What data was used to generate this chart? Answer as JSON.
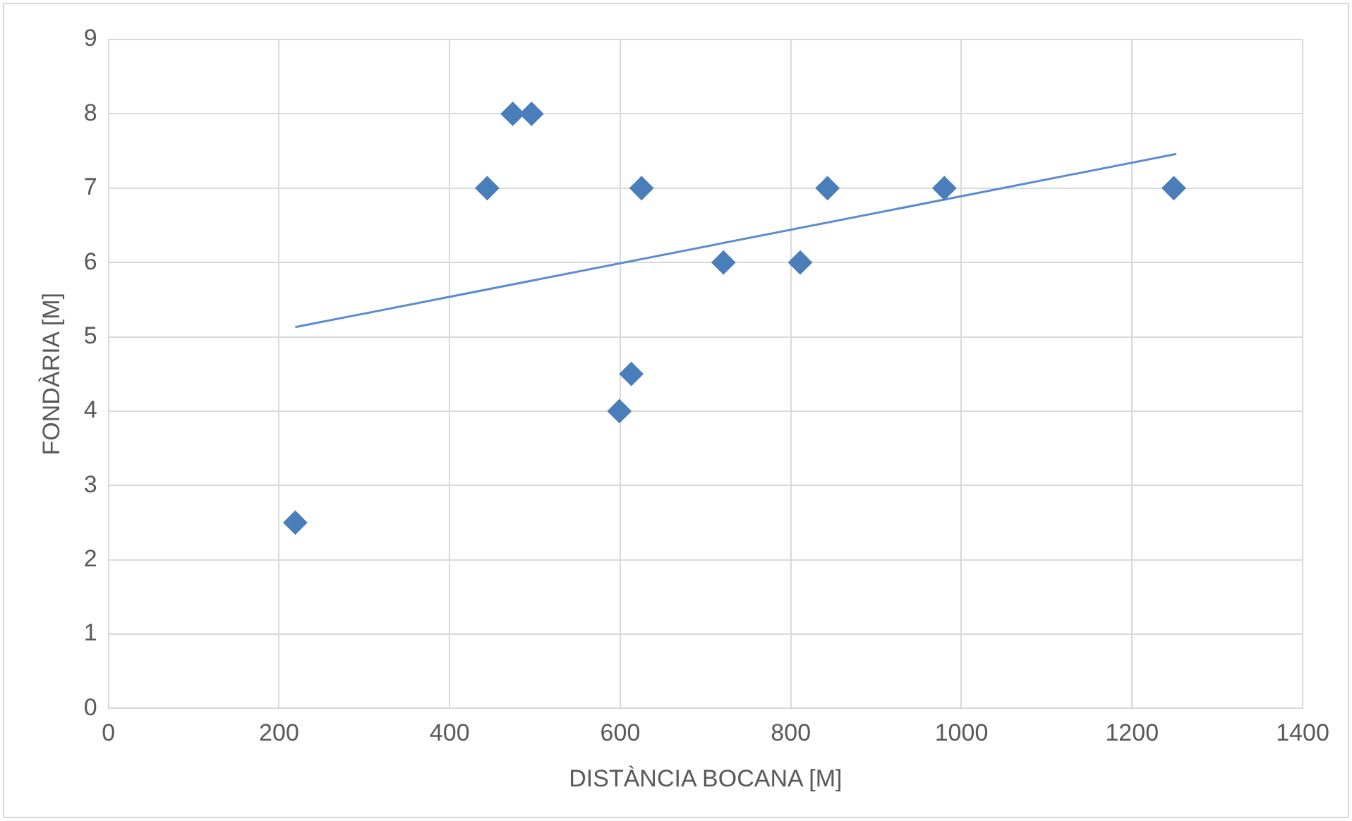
{
  "chart_data": {
    "type": "scatter",
    "xlabel": "DISTÀNCIA BOCANA [M]",
    "ylabel": "FONDÀRIA [M]",
    "xlim": [
      0,
      1400
    ],
    "xticks": [
      0,
      200,
      400,
      600,
      800,
      1000,
      1200,
      1400
    ],
    "ylim": [
      0,
      9
    ],
    "yticks": [
      0,
      1,
      2,
      3,
      4,
      5,
      6,
      7,
      8,
      9
    ],
    "grid": true,
    "legend": false,
    "marker": "diamond",
    "series": [
      {
        "color": "#4a7ebb",
        "x": [
          219,
          444,
          474,
          496,
          599,
          613,
          625,
          721,
          811,
          843,
          980,
          1249
        ],
        "values": [
          2.5,
          7,
          8,
          8,
          4,
          4.5,
          7,
          6,
          6,
          7,
          7,
          7
        ]
      },
      {
        "type": "line",
        "color": "#5b8bd0",
        "marker": "none",
        "line_style": "solid",
        "x": [
          219,
          1252
        ],
        "values": [
          5.13,
          7.46
        ]
      }
    ]
  }
}
